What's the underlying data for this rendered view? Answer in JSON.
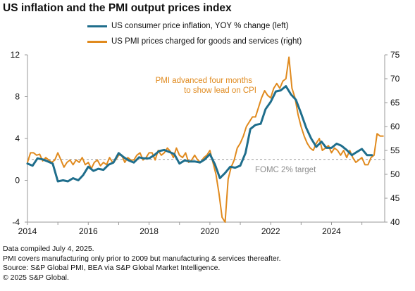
{
  "title": "US inflation and the PMI output prices index",
  "colors": {
    "cpi": "#1f6e8c",
    "pmi": "#e08a1e",
    "annotation": "#e08a1e",
    "target": "#8c8c8c",
    "axis": "#999999"
  },
  "notes": [
    "Data compiled July 4, 2025.",
    "PMI covers manufacturing only prior to 2009 but manufacturing & services thereafter.",
    "Source: S&P Global PMI, BEA via S&P Global Market Intelligence.",
    "© 2025 S&P Global."
  ],
  "chart_data": {
    "type": "line",
    "title": "US inflation and the PMI output prices index",
    "x_ticks": [
      "2014",
      "2016",
      "2018",
      "2020",
      "2022",
      "2024"
    ],
    "x_range": [
      2014.0,
      2025.75
    ],
    "y_left": {
      "ticks": [
        "-4",
        "0",
        "4",
        "8",
        "12"
      ],
      "range": [
        -4,
        12
      ]
    },
    "y_right": {
      "ticks": [
        "40",
        "45",
        "50",
        "55",
        "60",
        "65",
        "70",
        "75"
      ],
      "range": [
        40,
        75
      ]
    },
    "annotations": {
      "lead": [
        "PMI advanced four months",
        "to show lead on CPI"
      ],
      "target": "FOMC  2% target",
      "target_value": 2
    },
    "series": [
      {
        "name": "US consumer price inflation, YOY % change (left)",
        "axis": "left",
        "x": [
          2014.0,
          2014.17,
          2014.33,
          2014.5,
          2014.67,
          2014.83,
          2015.0,
          2015.17,
          2015.33,
          2015.5,
          2015.67,
          2015.83,
          2016.0,
          2016.17,
          2016.33,
          2016.5,
          2016.67,
          2016.83,
          2017.0,
          2017.17,
          2017.33,
          2017.5,
          2017.67,
          2017.83,
          2018.0,
          2018.17,
          2018.33,
          2018.5,
          2018.67,
          2018.83,
          2019.0,
          2019.17,
          2019.33,
          2019.5,
          2019.67,
          2019.83,
          2020.0,
          2020.17,
          2020.33,
          2020.5,
          2020.67,
          2020.83,
          2021.0,
          2021.17,
          2021.33,
          2021.5,
          2021.67,
          2021.83,
          2022.0,
          2022.17,
          2022.33,
          2022.5,
          2022.67,
          2022.83,
          2023.0,
          2023.17,
          2023.33,
          2023.5,
          2023.67,
          2023.83,
          2024.0,
          2024.17,
          2024.33,
          2024.5,
          2024.67,
          2024.83,
          2025.0,
          2025.17,
          2025.33
        ],
        "values": [
          1.6,
          1.4,
          2.1,
          2.0,
          1.8,
          1.6,
          -0.1,
          0.0,
          -0.1,
          0.2,
          0.0,
          0.5,
          1.3,
          0.9,
          1.1,
          1.0,
          1.5,
          1.7,
          2.6,
          2.2,
          1.9,
          1.7,
          2.2,
          2.1,
          2.1,
          2.4,
          2.8,
          2.9,
          2.7,
          2.5,
          1.6,
          1.9,
          1.8,
          1.8,
          1.7,
          2.0,
          2.5,
          1.5,
          0.2,
          0.7,
          1.3,
          1.2,
          1.4,
          2.6,
          4.9,
          5.3,
          5.4,
          6.8,
          7.5,
          8.5,
          8.6,
          9.0,
          8.2,
          7.7,
          6.4,
          5.0,
          4.0,
          3.2,
          3.7,
          3.1,
          3.1,
          3.5,
          3.3,
          2.9,
          2.4,
          2.7,
          3.0,
          2.4,
          2.4
        ]
      },
      {
        "name": "US PMI prices charged for goods and services (right)",
        "axis": "right",
        "x": [
          2014.0,
          2014.1,
          2014.2,
          2014.3,
          2014.4,
          2014.5,
          2014.6,
          2014.7,
          2014.8,
          2014.9,
          2015.0,
          2015.1,
          2015.2,
          2015.3,
          2015.4,
          2015.5,
          2015.6,
          2015.7,
          2015.8,
          2015.9,
          2016.0,
          2016.1,
          2016.2,
          2016.3,
          2016.4,
          2016.5,
          2016.6,
          2016.7,
          2016.8,
          2016.9,
          2017.0,
          2017.1,
          2017.2,
          2017.3,
          2017.4,
          2017.5,
          2017.6,
          2017.7,
          2017.8,
          2017.9,
          2018.0,
          2018.1,
          2018.2,
          2018.3,
          2018.4,
          2018.5,
          2018.6,
          2018.7,
          2018.8,
          2018.9,
          2019.0,
          2019.1,
          2019.2,
          2019.3,
          2019.4,
          2019.5,
          2019.6,
          2019.7,
          2019.8,
          2019.9,
          2020.0,
          2020.1,
          2020.2,
          2020.3,
          2020.4,
          2020.5,
          2020.6,
          2020.7,
          2020.8,
          2020.9,
          2021.0,
          2021.1,
          2021.2,
          2021.3,
          2021.4,
          2021.5,
          2021.6,
          2021.7,
          2021.8,
          2021.9,
          2022.0,
          2022.1,
          2022.2,
          2022.3,
          2022.4,
          2022.5,
          2022.6,
          2022.7,
          2022.8,
          2022.9,
          2023.0,
          2023.1,
          2023.2,
          2023.3,
          2023.4,
          2023.5,
          2023.6,
          2023.7,
          2023.8,
          2023.9,
          2024.0,
          2024.1,
          2024.2,
          2024.3,
          2024.4,
          2024.5,
          2024.6,
          2024.7,
          2024.8,
          2024.9,
          2025.0,
          2025.1,
          2025.2,
          2025.3,
          2025.4,
          2025.5,
          2025.6,
          2025.7
        ],
        "values": [
          52.5,
          54.5,
          54.5,
          54.0,
          54.2,
          52.8,
          53.5,
          53.0,
          52.5,
          53.0,
          54.5,
          53.0,
          51.5,
          52.5,
          53.0,
          52.0,
          53.0,
          52.5,
          53.5,
          52.0,
          52.5,
          51.2,
          52.5,
          53.0,
          51.8,
          52.5,
          52.0,
          53.5,
          52.5,
          53.0,
          54.0,
          54.0,
          52.5,
          53.5,
          53.0,
          53.0,
          54.0,
          54.5,
          53.0,
          53.5,
          54.5,
          54.5,
          53.0,
          55.0,
          54.0,
          54.5,
          55.5,
          54.8,
          53.5,
          55.5,
          54.0,
          53.5,
          54.5,
          52.5,
          53.0,
          54.0,
          53.0,
          52.5,
          53.5,
          54.0,
          55.0,
          52.5,
          50.0,
          46.0,
          41.0,
          40.0,
          49.0,
          51.5,
          53.0,
          55.5,
          56.5,
          58.0,
          60.0,
          61.0,
          62.0,
          62.0,
          64.0,
          66.0,
          67.5,
          66.5,
          66.0,
          68.0,
          69.0,
          68.0,
          69.5,
          70.0,
          74.5,
          68.0,
          66.0,
          62.5,
          60.0,
          58.0,
          56.5,
          55.5,
          55.0,
          56.5,
          57.5,
          55.0,
          55.5,
          56.0,
          54.5,
          55.5,
          55.0,
          54.0,
          55.0,
          53.5,
          55.0,
          53.5,
          52.5,
          53.0,
          53.5,
          52.0,
          52.0,
          53.5,
          54.0,
          58.5,
          58.0,
          58.0
        ]
      }
    ]
  }
}
